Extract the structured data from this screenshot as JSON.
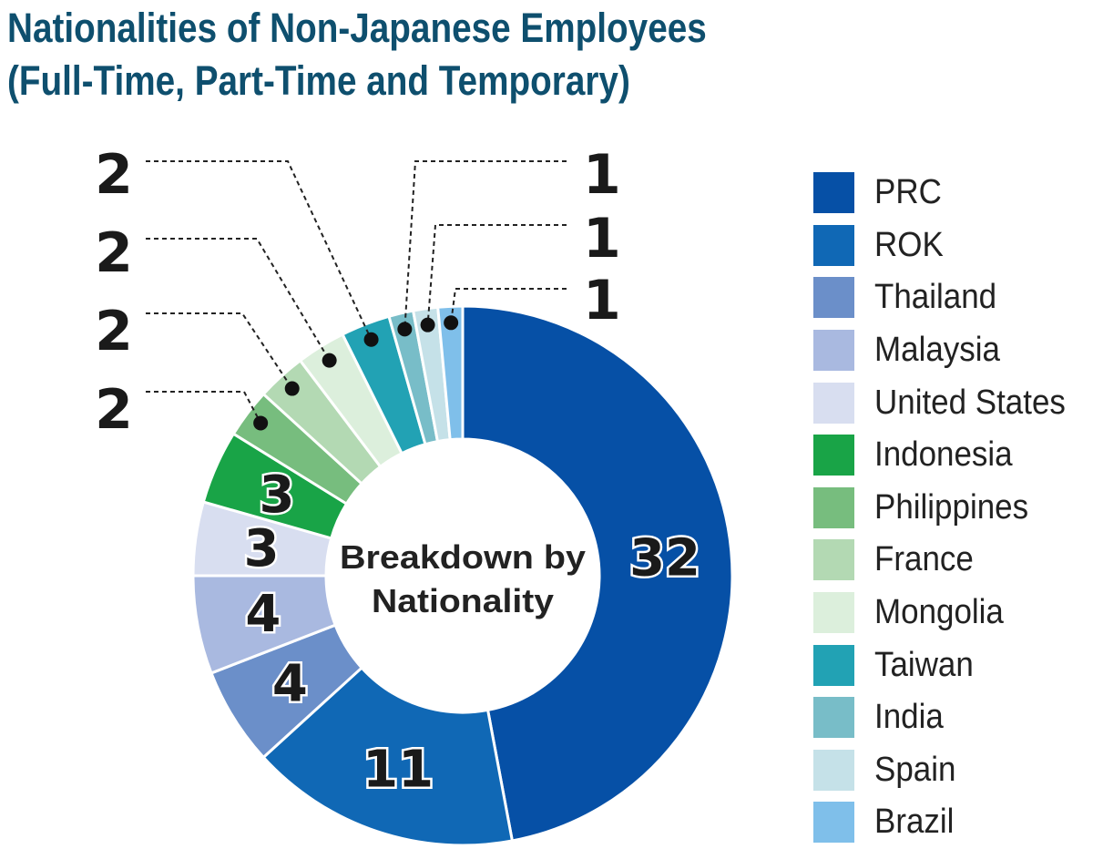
{
  "chart_data": {
    "type": "pie",
    "title": [
      "Nationalities of Non-Japanese Employees",
      "(Full-Time, Part-Time and Temporary)"
    ],
    "center_label": [
      "Breakdown by",
      "Nationality"
    ],
    "categories": [
      "PRC",
      "ROK",
      "Thailand",
      "Malaysia",
      "United States",
      "Indonesia",
      "Philippines",
      "France",
      "Mongolia",
      "Taiwan",
      "India",
      "Spain",
      "Brazil"
    ],
    "values": [
      32,
      11,
      4,
      4,
      3,
      3,
      2,
      2,
      2,
      2,
      1,
      1,
      1
    ],
    "colors": [
      "#0650a6",
      "#1068b5",
      "#6b8fc9",
      "#a9b9e0",
      "#d8def0",
      "#19a447",
      "#77bd7e",
      "#b3d9b3",
      "#dcefdc",
      "#22a2b4",
      "#78bdc8",
      "#c5e1e8",
      "#7fbfea"
    ],
    "legend_position": "right",
    "label_placement": [
      "inside",
      "inside",
      "inside",
      "inside",
      "inside",
      "inside",
      "callout",
      "callout",
      "callout",
      "callout",
      "callout",
      "callout",
      "callout"
    ]
  }
}
